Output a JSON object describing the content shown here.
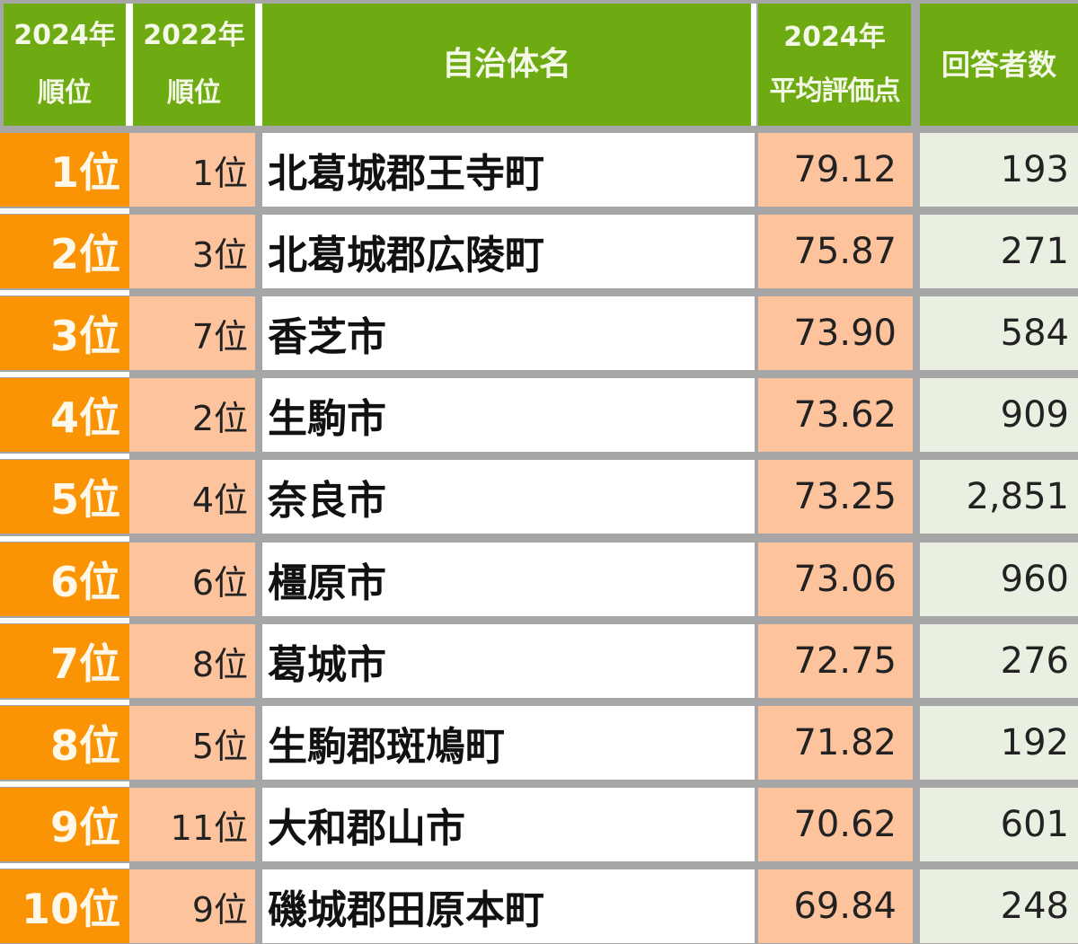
{
  "table": {
    "headers": {
      "rank_2024": {
        "line1": "2024年",
        "line2": "順位"
      },
      "rank_2022": {
        "line1": "2022年",
        "line2": "順位"
      },
      "municipality": {
        "line1": "自治体名"
      },
      "score_2024": {
        "line1": "2024年",
        "line2": "平均評価点"
      },
      "respondents": {
        "line1": "回答者数"
      }
    },
    "rows": [
      {
        "rank_2024": "1位",
        "rank_2022": "1位",
        "name": "北葛城郡王寺町",
        "score": "79.12",
        "respondents": "193"
      },
      {
        "rank_2024": "2位",
        "rank_2022": "3位",
        "name": "北葛城郡広陵町",
        "score": "75.87",
        "respondents": "271"
      },
      {
        "rank_2024": "3位",
        "rank_2022": "7位",
        "name": "香芝市",
        "score": "73.90",
        "respondents": "584"
      },
      {
        "rank_2024": "4位",
        "rank_2022": "2位",
        "name": "生駒市",
        "score": "73.62",
        "respondents": "909"
      },
      {
        "rank_2024": "5位",
        "rank_2022": "4位",
        "name": "奈良市",
        "score": "73.25",
        "respondents": "2,851"
      },
      {
        "rank_2024": "6位",
        "rank_2022": "6位",
        "name": "橿原市",
        "score": "73.06",
        "respondents": "960"
      },
      {
        "rank_2024": "7位",
        "rank_2022": "8位",
        "name": "葛城市",
        "score": "72.75",
        "respondents": "276"
      },
      {
        "rank_2024": "8位",
        "rank_2022": "5位",
        "name": "生駒郡斑鳩町",
        "score": "71.82",
        "respondents": "192"
      },
      {
        "rank_2024": "9位",
        "rank_2022": "11位",
        "name": "大和郡山市",
        "score": "70.62",
        "respondents": "601"
      },
      {
        "rank_2024": "10位",
        "rank_2022": "9位",
        "name": "磯城郡田原本町",
        "score": "69.84",
        "respondents": "248"
      }
    ]
  },
  "colors": {
    "header_green": "#6eab12",
    "rank_orange": "#fb9404",
    "peach": "#fcc39d",
    "respondent_bg": "#e9f0e1",
    "grid_gray": "#a6a6a6"
  }
}
